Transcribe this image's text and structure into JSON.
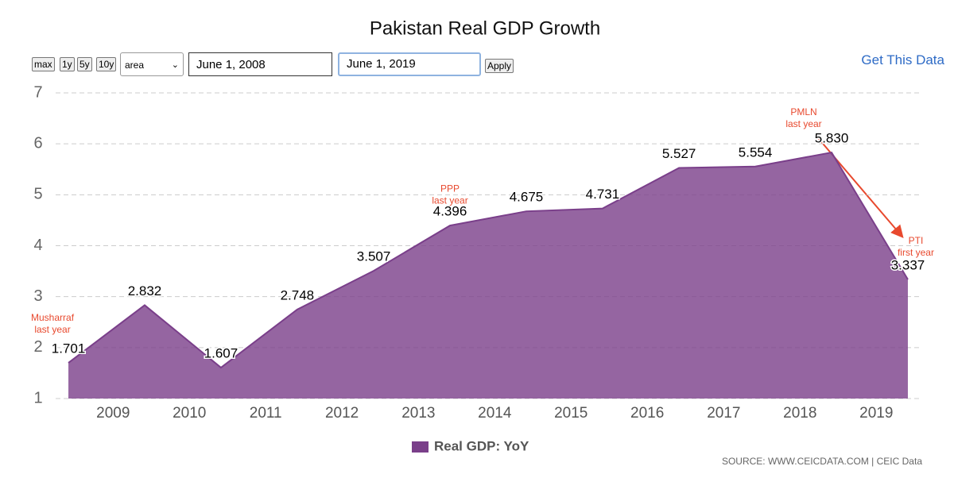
{
  "chart_data": {
    "type": "area",
    "title": "Pakistan Real GDP Growth",
    "controls": {
      "buttons": [
        "max",
        "1y",
        "5y",
        "10y"
      ],
      "chart_type": "area",
      "start_date": "June 1, 2008",
      "end_date": "June 1, 2019",
      "apply": "Apply",
      "get_data": "Get This Data"
    },
    "x": [
      "2008-06-01",
      "2009-06-01",
      "2010-06-01",
      "2011-06-01",
      "2012-06-01",
      "2013-06-01",
      "2014-06-01",
      "2015-06-01",
      "2016-06-01",
      "2017-06-01",
      "2018-06-01",
      "2019-06-01"
    ],
    "xlim": [
      "2008-04-01",
      "2019-08-01"
    ],
    "xticks": [
      {
        "value": "2009-01-01",
        "label": "2009"
      },
      {
        "value": "2010-01-01",
        "label": "2010"
      },
      {
        "value": "2011-01-01",
        "label": "2011"
      },
      {
        "value": "2012-01-01",
        "label": "2012"
      },
      {
        "value": "2013-01-01",
        "label": "2013"
      },
      {
        "value": "2014-01-01",
        "label": "2014"
      },
      {
        "value": "2015-01-01",
        "label": "2015"
      },
      {
        "value": "2016-01-01",
        "label": "2016"
      },
      {
        "value": "2017-01-01",
        "label": "2017"
      },
      {
        "value": "2018-01-01",
        "label": "2018"
      },
      {
        "value": "2019-01-01",
        "label": "2019"
      }
    ],
    "ylim": [
      1,
      7
    ],
    "yticks": [
      1,
      2,
      3,
      4,
      5,
      6,
      7
    ],
    "grid": true,
    "series": [
      {
        "name": "Real GDP: YoY",
        "color": "#7a3f8a",
        "values": [
          1.701,
          2.832,
          1.607,
          2.748,
          3.507,
          4.396,
          4.675,
          4.731,
          5.527,
          5.554,
          5.83,
          3.337
        ],
        "value_labels": [
          "1.701",
          "2.832",
          "1.607",
          "2.748",
          "3.507",
          "4.396",
          "4.675",
          "4.731",
          "5.527",
          "5.554",
          "5.830",
          "3.337"
        ]
      }
    ],
    "annotations": [
      {
        "lines": [
          "Musharraf",
          "last year"
        ],
        "x": "2008-06-01",
        "y": 1.701
      },
      {
        "lines": [
          "PPP",
          "last year"
        ],
        "x": "2013-06-01",
        "y": 4.396
      },
      {
        "lines": [
          "PMLN",
          "last year"
        ],
        "x": "2018-06-01",
        "y": 5.83
      },
      {
        "lines": [
          "PTI",
          "first year"
        ],
        "x": "2019-06-01",
        "y": 3.337
      }
    ],
    "source": "SOURCE: WWW.CEICDATA.COM | CEIC Data"
  }
}
